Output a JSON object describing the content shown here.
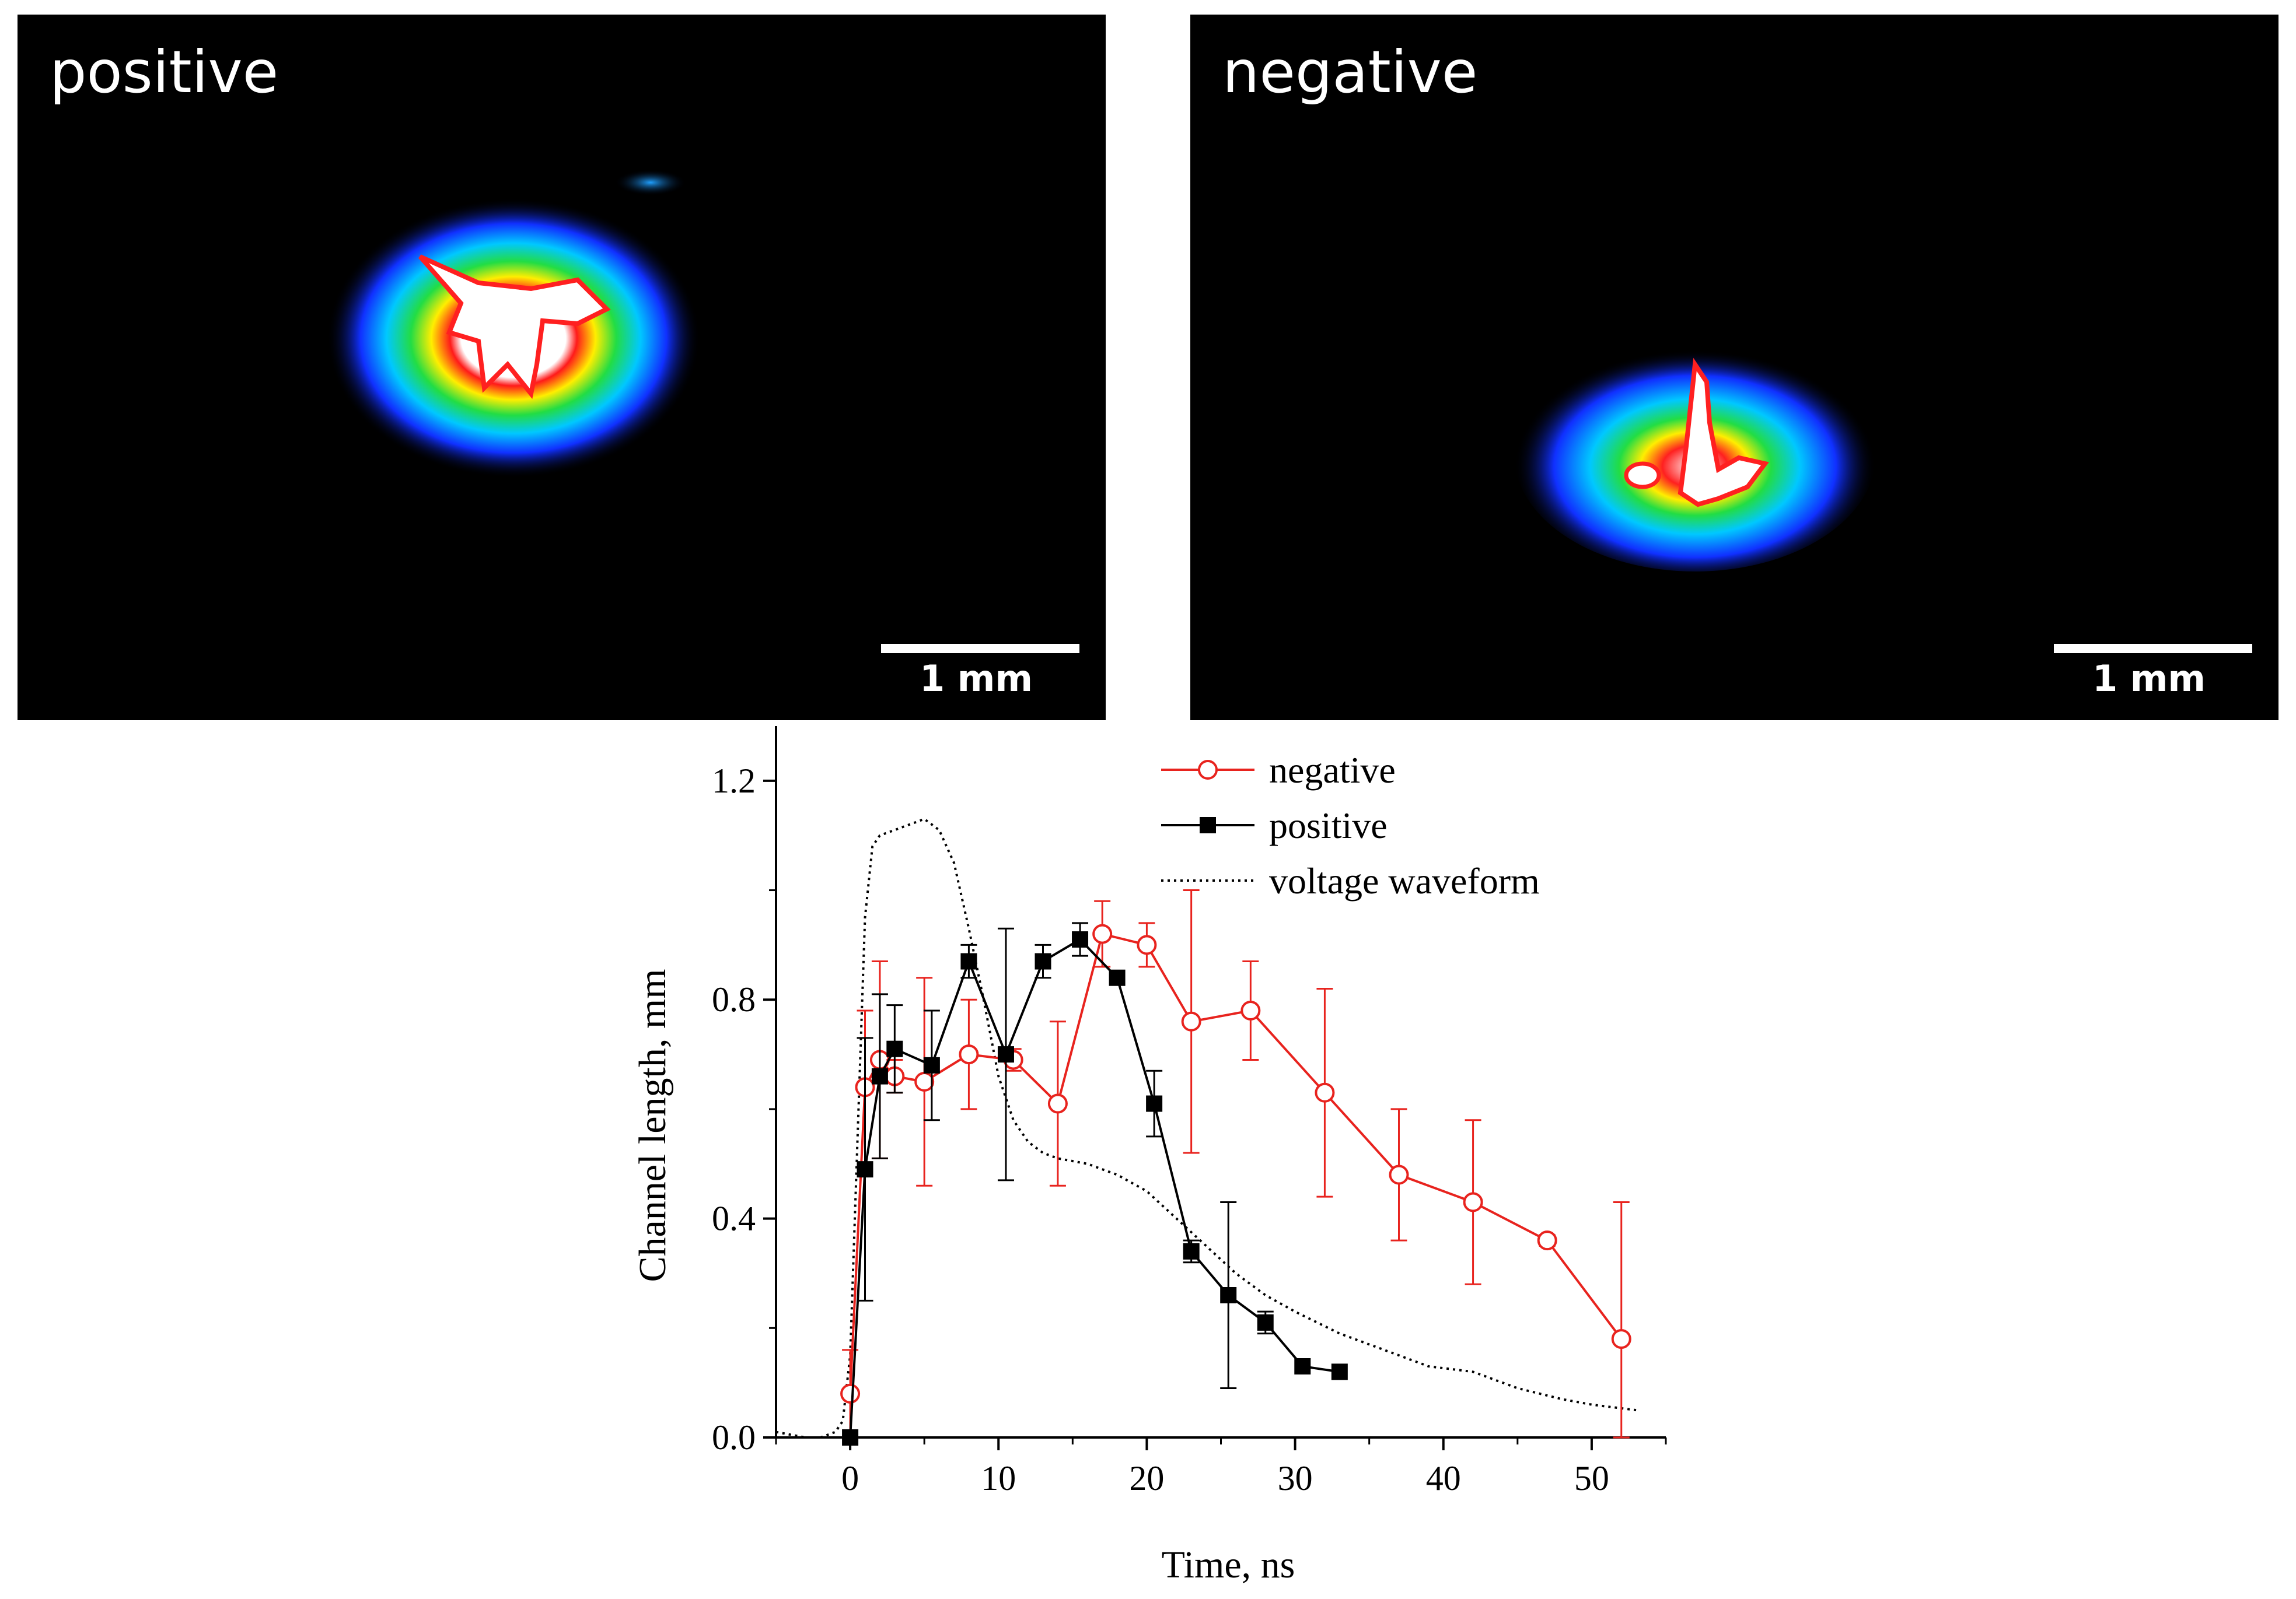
{
  "panels": {
    "positive": {
      "label": "positive",
      "scale_label": "1 mm"
    },
    "negative": {
      "label": "negative",
      "scale_label": "1 mm"
    }
  },
  "chart_data": {
    "type": "line",
    "xlabel": "Time, ns",
    "ylabel": "Channel length, mm",
    "xlim": [
      -5,
      55
    ],
    "ylim": [
      0,
      1.3
    ],
    "xticks": [
      0,
      10,
      20,
      30,
      40,
      50
    ],
    "yticks": [
      0.0,
      0.4,
      0.8,
      1.2
    ],
    "xtick_labels": [
      "0",
      "10",
      "20",
      "30",
      "40",
      "50"
    ],
    "ytick_labels": [
      "0.0",
      "0.4",
      "0.8",
      "1.2"
    ],
    "legend_position": "top-right",
    "series": [
      {
        "name": "negative",
        "color": "#e8231e",
        "marker": "open-circle",
        "x": [
          0,
          1,
          2,
          3,
          5,
          8,
          11,
          14,
          17,
          20,
          23,
          27,
          32,
          37,
          42,
          47,
          52
        ],
        "y": [
          0.08,
          0.64,
          0.69,
          0.66,
          0.65,
          0.7,
          0.69,
          0.61,
          0.92,
          0.9,
          0.76,
          0.78,
          0.63,
          0.48,
          0.43,
          0.36,
          0.18
        ],
        "err": [
          0.08,
          0.14,
          0.18,
          0.03,
          0.19,
          0.1,
          0.02,
          0.15,
          0.06,
          0.04,
          0.24,
          0.09,
          0.19,
          0.12,
          0.15,
          0.01,
          0.25
        ]
      },
      {
        "name": "positive",
        "color": "#000000",
        "marker": "filled-square",
        "x": [
          0,
          1,
          2,
          3,
          5.5,
          8,
          10.5,
          13,
          15.5,
          18,
          20.5,
          23,
          25.5,
          28,
          30.5,
          33
        ],
        "y": [
          0.0,
          0.49,
          0.66,
          0.71,
          0.68,
          0.87,
          0.7,
          0.87,
          0.91,
          0.84,
          0.61,
          0.34,
          0.26,
          0.21,
          0.13,
          0.12
        ],
        "err": [
          0.0,
          0.24,
          0.15,
          0.08,
          0.1,
          0.03,
          0.23,
          0.03,
          0.03,
          0.0,
          0.06,
          0.02,
          0.17,
          0.02,
          0.0,
          0.0
        ]
      },
      {
        "name": "voltage waveform",
        "color": "#000000",
        "marker": "dotted-line",
        "x": [
          -5,
          -3,
          -2,
          -1,
          -0.5,
          0,
          0.5,
          1,
          1.5,
          2,
          3,
          4,
          5,
          6,
          7,
          8,
          9,
          10,
          11,
          12,
          13,
          14,
          16,
          18,
          20,
          22,
          24,
          26,
          28,
          30,
          33,
          36,
          39,
          42,
          45,
          48,
          50,
          53
        ],
        "y": [
          0.01,
          0.0,
          0.0,
          0.01,
          0.03,
          0.15,
          0.55,
          0.95,
          1.08,
          1.1,
          1.11,
          1.12,
          1.13,
          1.11,
          1.05,
          0.93,
          0.8,
          0.66,
          0.58,
          0.54,
          0.52,
          0.51,
          0.5,
          0.48,
          0.45,
          0.4,
          0.35,
          0.3,
          0.26,
          0.23,
          0.19,
          0.16,
          0.13,
          0.12,
          0.09,
          0.07,
          0.06,
          0.05
        ]
      }
    ]
  }
}
